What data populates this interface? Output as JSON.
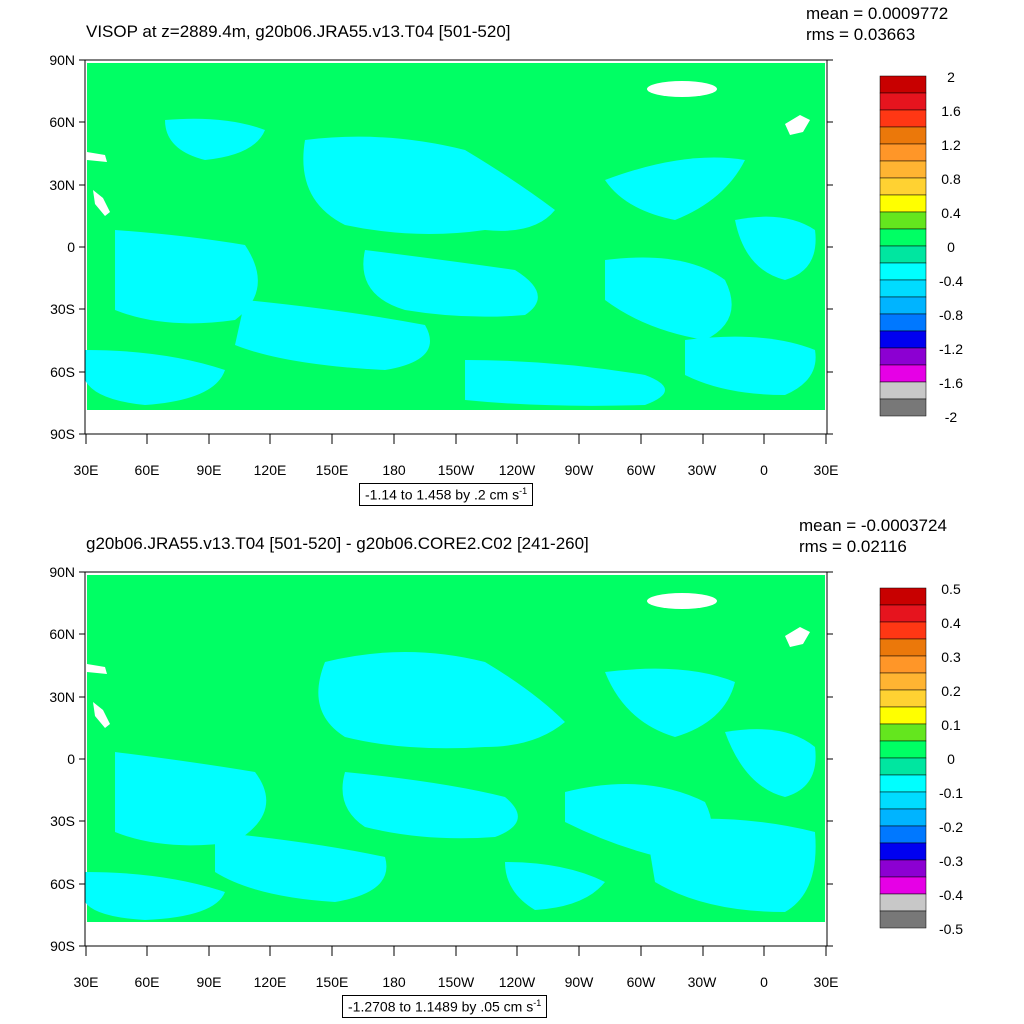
{
  "panels": [
    {
      "title": "VISOP at z=2889.4m, g20b06.JRA55.v13.T04 [501-520]",
      "mean_label": "mean = 0.0009772",
      "rms_label": "rms = 0.03663",
      "range_prefix": "-1.14 to 1.458 by .2 cm s",
      "range_sup": "-1",
      "legend_labels": [
        "2",
        "1.6",
        "1.2",
        "0.8",
        "0.4",
        "0",
        "-0.4",
        "-0.8",
        "-1.2",
        "-1.6",
        "-2"
      ]
    },
    {
      "title": "g20b06.JRA55.v13.T04 [501-520] - g20b06.CORE2.C02 [241-260]",
      "mean_label": "mean = -0.0003724",
      "rms_label": "rms = 0.02116",
      "range_prefix": "-1.2708 to 1.1489 by .05 cm s",
      "range_sup": "-1",
      "legend_labels": [
        "0.5",
        "0.4",
        "0.3",
        "0.2",
        "0.1",
        "0",
        "-0.1",
        "-0.2",
        "-0.3",
        "-0.4",
        "-0.5"
      ]
    }
  ],
  "lat_labels": [
    "90N",
    "60N",
    "30N",
    "0",
    "30S",
    "60S",
    "90S"
  ],
  "lon_labels": [
    "30E",
    "60E",
    "90E",
    "120E",
    "150E",
    "180",
    "150W",
    "120W",
    "90W",
    "60W",
    "30W",
    "0",
    "30E"
  ],
  "colorbar_colors": [
    "#c80000",
    "#e6141e",
    "#ff3714",
    "#eb780a",
    "#ff9628",
    "#ffb432",
    "#ffd232",
    "#ffff00",
    "#64e61e",
    "#00ff64",
    "#00e6a0",
    "#00ffff",
    "#00dcff",
    "#00b4ff",
    "#0078ff",
    "#0000f0",
    "#8c00d2",
    "#e600e6",
    "#c8c8c8",
    "#787878"
  ],
  "field_colors": {
    "ocean_main": "#00ff64",
    "ocean_neg": "#00ffff",
    "land": "#ffffff"
  }
}
